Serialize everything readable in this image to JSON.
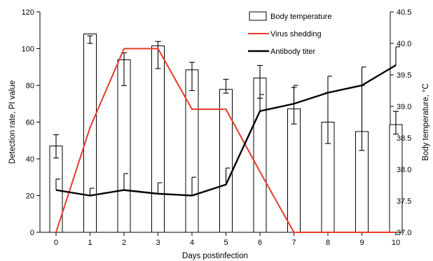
{
  "chart_data": {
    "type": "bar",
    "xlabel": "Days postinfection",
    "ylabel_left": "Detection rate, PI value",
    "ylabel_right": "Body temperature, °C",
    "x": [
      0,
      1,
      2,
      3,
      4,
      5,
      6,
      7,
      8,
      9,
      10
    ],
    "x_tick_labels": [
      "0",
      "1",
      "2",
      "3",
      "4",
      "5",
      "6",
      "7",
      "8",
      "9",
      "10"
    ],
    "ylim_left": [
      0,
      120
    ],
    "y_left_ticks": [
      0,
      20,
      40,
      60,
      80,
      100,
      120
    ],
    "y_left_tick_labels": [
      "0",
      "20",
      "40",
      "60",
      "80",
      "100",
      "120"
    ],
    "ylim_right": [
      37.0,
      40.5
    ],
    "y_right_ticks": [
      37.0,
      37.5,
      38.0,
      38.5,
      39.0,
      39.5,
      40.0,
      40.5
    ],
    "y_right_tick_labels": [
      "37.0",
      "37.5",
      "38.0",
      "38.5",
      "39.0",
      "39.5",
      "40.0",
      "40.5"
    ],
    "grid": false,
    "legend_position": "top-right",
    "series": [
      {
        "name": "Body temperature",
        "kind": "bar",
        "axis": "right",
        "values": [
          38.37,
          40.15,
          39.74,
          39.96,
          39.58,
          39.27,
          39.45,
          38.96,
          38.75,
          38.6,
          38.71
        ],
        "error_upper": [
          38.55,
          40.12,
          39.85,
          40.03,
          39.7,
          39.43,
          39.65,
          39.3,
          39.22,
          39.33,
          38.92
        ],
        "error_lower": [
          38.18,
          40.0,
          39.33,
          39.6,
          39.25,
          39.21,
          39.13,
          38.72,
          38.41,
          38.3,
          38.56
        ],
        "color": "#ffffff",
        "stroke": "#000000"
      },
      {
        "name": "Virus shedding",
        "kind": "line",
        "axis": "left",
        "values": [
          0,
          57,
          100,
          100,
          67,
          67,
          33,
          0,
          0,
          0,
          0
        ],
        "color": "#e8392a"
      },
      {
        "name": "Antibody titer",
        "kind": "line",
        "axis": "left",
        "values": [
          23,
          20,
          23,
          21,
          20,
          26,
          66,
          70,
          76,
          80,
          91
        ],
        "error_upper": [
          29,
          24,
          32,
          27,
          30,
          35,
          75,
          80,
          85,
          90,
          101
        ],
        "color": "#000000"
      }
    ]
  }
}
